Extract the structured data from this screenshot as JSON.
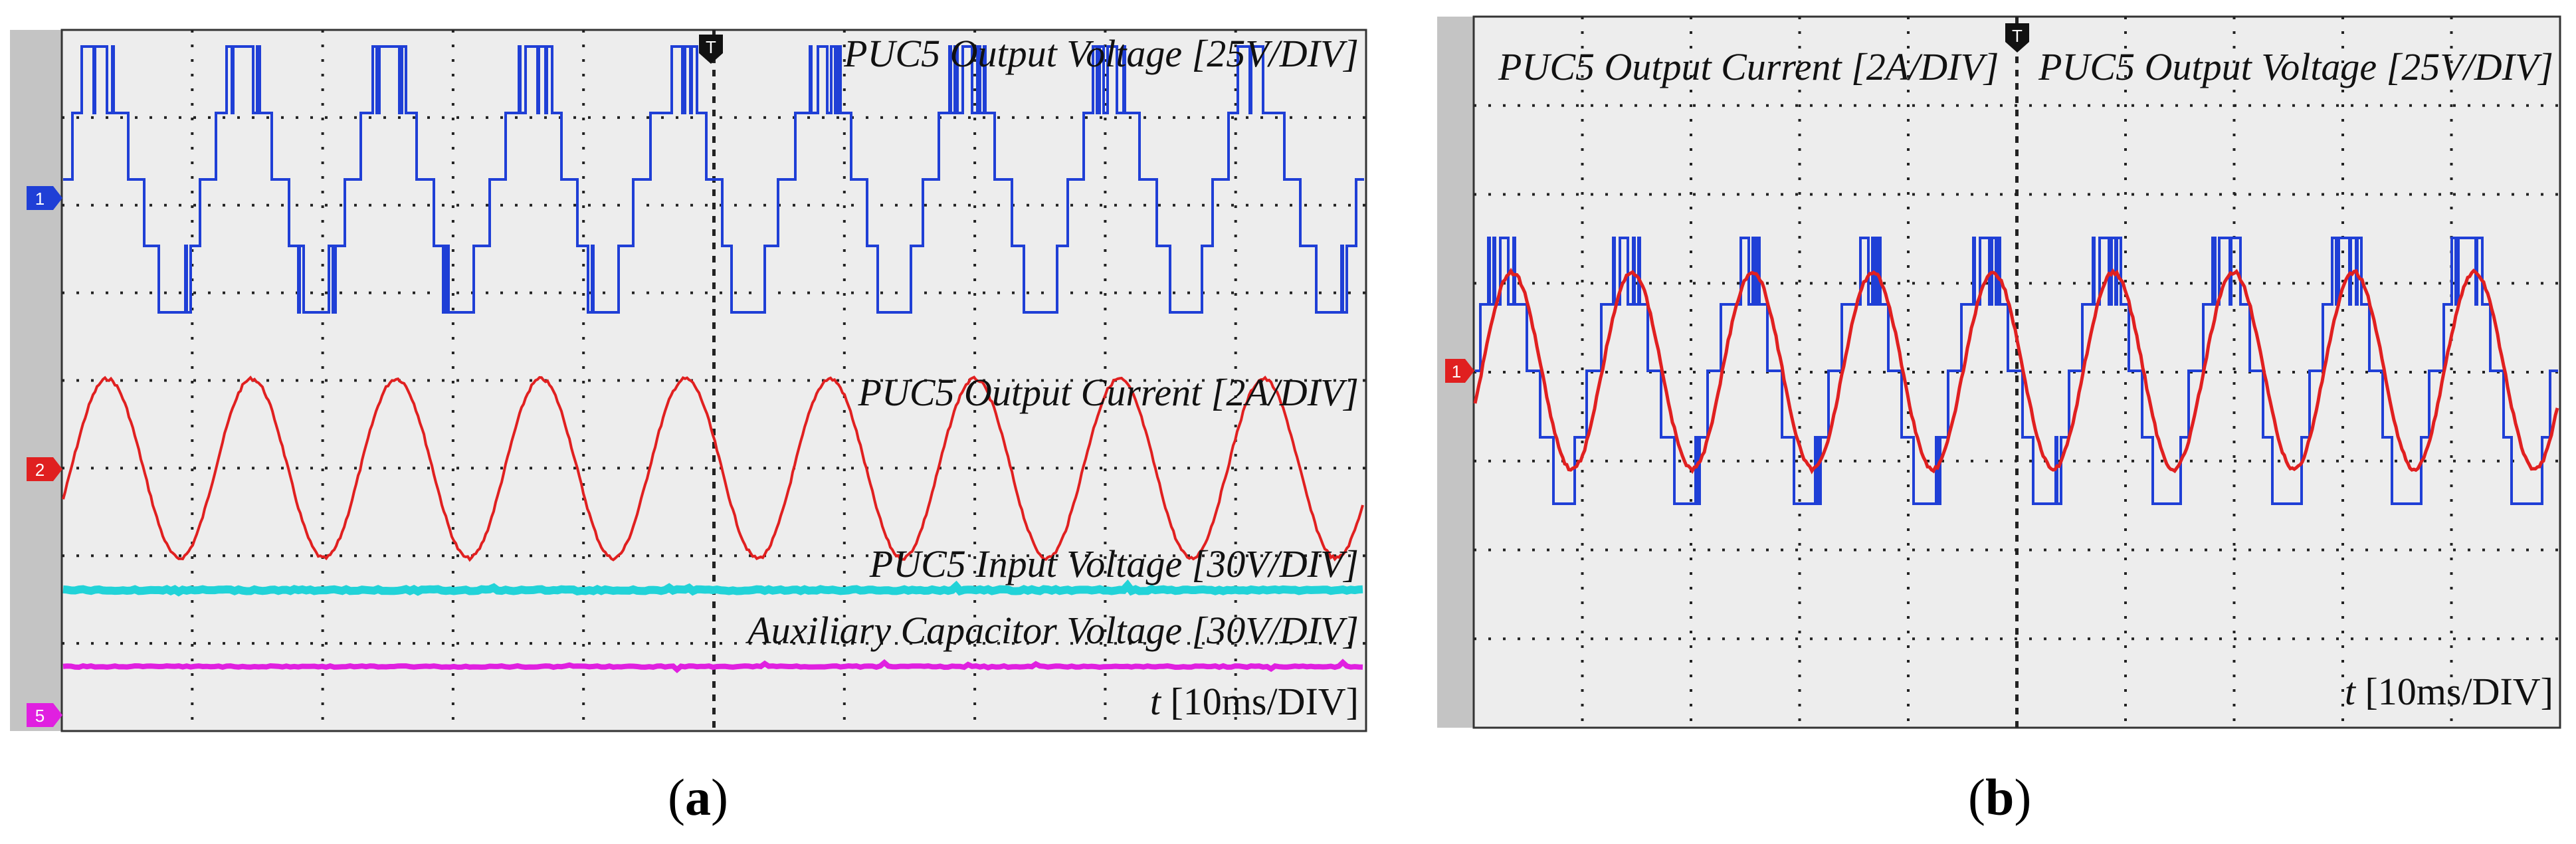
{
  "panels": [
    {
      "id": "a",
      "caption_letter": "a",
      "channel_markers": [
        {
          "label": "1",
          "color": "#1f3fd6"
        },
        {
          "label": "2",
          "color": "#e02020"
        },
        {
          "label": "5",
          "color": "#e020e0"
        }
      ],
      "labels": {
        "voltage": "PUC5 Output Voltage [25V/DIV]",
        "current": "PUC5 Output Current [2A/DIV]",
        "input": "PUC5 Input Voltage [30V/DIV]",
        "aux": "Auxiliary Capacitor Voltage [30V/DIV]",
        "time_var": "t",
        "time_unit": "[10ms/DIV]"
      }
    },
    {
      "id": "b",
      "caption_letter": "b",
      "channel_markers": [
        {
          "label": "1",
          "color": "#e02020"
        }
      ],
      "labels": {
        "current": "PUC5 Output Current [2A/DIV]",
        "voltage": "PUC5 Output Voltage [25V/DIV]",
        "time_var": "t",
        "time_unit": "[10ms/DIV]"
      }
    }
  ],
  "chart_data": [
    {
      "type": "line",
      "panel": "a",
      "x_unit": "ms",
      "x_range": [
        0,
        100
      ],
      "time_per_div_ms": 10,
      "grid": true,
      "series": [
        {
          "name": "PUC5 Output Voltage [25V/DIV]",
          "color": "#1f3fd6",
          "waveform": "five-level staircase",
          "period_ms": 11.1,
          "cycles": 9
        },
        {
          "name": "PUC5 Output Current [2A/DIV]",
          "color": "#e02020",
          "waveform": "sinusoid",
          "period_ms": 11.1,
          "cycles": 9
        },
        {
          "name": "PUC5 Input Voltage [30V/DIV]",
          "color": "#22d3d8",
          "waveform": "dc"
        },
        {
          "name": "Auxiliary Capacitor Voltage [30V/DIV]",
          "color": "#e020e0",
          "waveform": "dc"
        }
      ]
    },
    {
      "type": "line",
      "panel": "b",
      "x_unit": "ms",
      "x_range": [
        0,
        100
      ],
      "time_per_div_ms": 10,
      "grid": true,
      "series": [
        {
          "name": "PUC5 Output Current [2A/DIV]",
          "color": "#e02020",
          "waveform": "sinusoid",
          "period_ms": 11.1,
          "cycles": 9
        },
        {
          "name": "PUC5 Output Voltage [25V/DIV]",
          "color": "#1f3fd6",
          "waveform": "five-level staircase",
          "period_ms": 11.1,
          "cycles": 9
        }
      ]
    }
  ]
}
